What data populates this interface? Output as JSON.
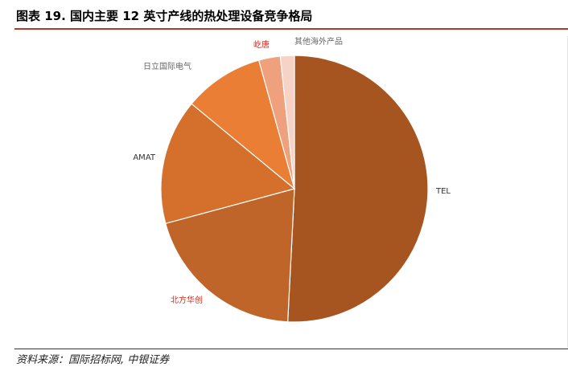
{
  "header": {
    "title": "图表 19. 国内主要 12 英寸产线的热处理设备竞争格局"
  },
  "footer": {
    "source": "资料来源：国际招标网, 中银证券"
  },
  "colors": {
    "title_rule": "#b23a2a",
    "highlight_label": "#d42a1e",
    "normal_label": "#555555"
  },
  "chart_data": {
    "type": "pie",
    "title": "",
    "start_angle_deg": 0,
    "direction": "clockwise",
    "slices": [
      {
        "label": "TEL",
        "value": 50.8,
        "color": "#a65520",
        "label_color": "#333333"
      },
      {
        "label": "北方华创",
        "value": 20.0,
        "color": "#c0652a",
        "label_color": "#d42a1e"
      },
      {
        "label": "AMAT",
        "value": 15.2,
        "color": "#d4702c",
        "label_color": "#333333"
      },
      {
        "label": "日立国际电气",
        "value": 9.7,
        "color": "#ea7e34",
        "label_color": "#666666"
      },
      {
        "label": "屹唐",
        "value": 2.6,
        "color": "#efa17e",
        "label_color": "#d42a1e"
      },
      {
        "label": "其他海外产品",
        "value": 1.7,
        "color": "#f6d3c6",
        "label_color": "#666666"
      }
    ]
  }
}
